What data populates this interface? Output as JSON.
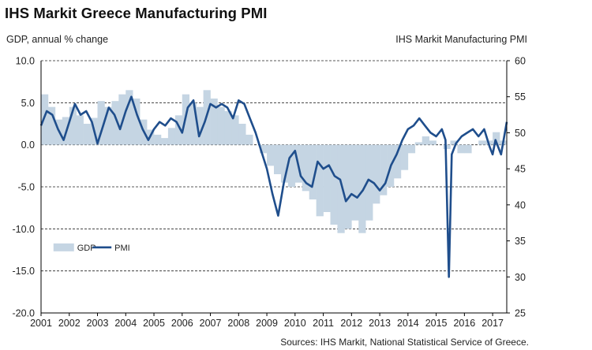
{
  "title": "IHS Markit Greece Manufacturing PMI",
  "left_axis_label": "GDP, annual % change",
  "right_axis_label": "IHS Markit Manufacturing PMI",
  "source": "Sources: IHS Markit, National Statistical Service of Greece.",
  "colors": {
    "gdp": "#c5d5e3",
    "pmi": "#1f4e8c",
    "grid": "#222222",
    "axis": "#000000"
  },
  "chart_data": {
    "type": "area+line",
    "title": "IHS Markit Greece Manufacturing PMI",
    "xlabel": "",
    "ylabel": "GDP, annual % change",
    "y2label": "IHS Markit Manufacturing PMI",
    "x_range": [
      2001.0,
      2017.5
    ],
    "ylim": [
      -20,
      10
    ],
    "y2lim": [
      25,
      60
    ],
    "left_ticks": [
      "10.0",
      "5.0",
      "0.0",
      "-5.0",
      "-10.0",
      "-15.0",
      "-20.0"
    ],
    "left_tick_values": [
      10,
      5,
      0,
      -5,
      -10,
      -15,
      -20
    ],
    "right_ticks": [
      "60",
      "55",
      "50",
      "45",
      "40",
      "35",
      "30",
      "25"
    ],
    "right_tick_values": [
      60,
      55,
      50,
      45,
      40,
      35,
      30,
      25
    ],
    "year_labels": [
      "2001",
      "2002",
      "2003",
      "2004",
      "2005",
      "2006",
      "2007",
      "2008",
      "2009",
      "2010",
      "2011",
      "2012",
      "2013",
      "2014",
      "2015",
      "2016",
      "2017"
    ],
    "legend": [
      "GDP",
      "PMI"
    ],
    "series": [
      {
        "name": "GDP",
        "axis": "left",
        "style": "area",
        "x": [
          2001.0,
          2001.25,
          2001.5,
          2001.75,
          2002.0,
          2002.25,
          2002.5,
          2002.75,
          2003.0,
          2003.25,
          2003.5,
          2003.75,
          2004.0,
          2004.25,
          2004.5,
          2004.75,
          2005.0,
          2005.25,
          2005.5,
          2005.75,
          2006.0,
          2006.25,
          2006.5,
          2006.75,
          2007.0,
          2007.25,
          2007.5,
          2007.75,
          2008.0,
          2008.25,
          2008.5,
          2008.75,
          2009.0,
          2009.25,
          2009.5,
          2009.75,
          2010.0,
          2010.25,
          2010.5,
          2010.75,
          2011.0,
          2011.25,
          2011.5,
          2011.75,
          2012.0,
          2012.25,
          2012.5,
          2012.75,
          2013.0,
          2013.25,
          2013.5,
          2013.75,
          2014.0,
          2014.25,
          2014.5,
          2014.75,
          2015.0,
          2015.25,
          2015.5,
          2015.75,
          2016.0,
          2016.25,
          2016.5,
          2016.75,
          2017.0,
          2017.25
        ],
        "values": [
          6.0,
          4.5,
          3.0,
          3.3,
          4.5,
          3.5,
          2.5,
          3.2,
          5.2,
          4.5,
          5.2,
          6.0,
          6.5,
          5.5,
          3.0,
          1.8,
          1.2,
          0.8,
          2.0,
          3.5,
          6.0,
          5.0,
          4.5,
          6.5,
          5.5,
          4.5,
          4.0,
          3.5,
          2.5,
          1.2,
          0.0,
          -1.0,
          -2.5,
          -3.5,
          -4.5,
          -5.0,
          -4.5,
          -5.5,
          -6.5,
          -8.5,
          -8.0,
          -9.5,
          -10.5,
          -10.0,
          -9.0,
          -10.5,
          -9.0,
          -7.0,
          -6.0,
          -5.0,
          -4.0,
          -3.0,
          -1.0,
          0.3,
          1.0,
          0.5,
          0.0,
          -0.5,
          0.5,
          -1.0,
          -1.0,
          0.0,
          0.5,
          0.5,
          1.5,
          0.5
        ]
      },
      {
        "name": "PMI",
        "axis": "right",
        "style": "line",
        "x": [
          2001.0,
          2001.2,
          2001.4,
          2001.6,
          2001.8,
          2002.0,
          2002.2,
          2002.4,
          2002.6,
          2002.8,
          2003.0,
          2003.2,
          2003.4,
          2003.6,
          2003.8,
          2004.0,
          2004.2,
          2004.4,
          2004.6,
          2004.8,
          2005.0,
          2005.2,
          2005.4,
          2005.6,
          2005.8,
          2006.0,
          2006.2,
          2006.4,
          2006.6,
          2006.8,
          2007.0,
          2007.2,
          2007.4,
          2007.6,
          2007.8,
          2008.0,
          2008.2,
          2008.4,
          2008.6,
          2008.8,
          2009.0,
          2009.2,
          2009.4,
          2009.6,
          2009.8,
          2010.0,
          2010.2,
          2010.4,
          2010.6,
          2010.8,
          2011.0,
          2011.2,
          2011.4,
          2011.6,
          2011.8,
          2012.0,
          2012.2,
          2012.4,
          2012.6,
          2012.8,
          2013.0,
          2013.2,
          2013.4,
          2013.6,
          2013.8,
          2014.0,
          2014.2,
          2014.4,
          2014.6,
          2014.8,
          2015.0,
          2015.2,
          2015.33,
          2015.45,
          2015.55,
          2015.7,
          2015.9,
          2016.1,
          2016.3,
          2016.5,
          2016.7,
          2016.9,
          2017.0,
          2017.1,
          2017.3,
          2017.5
        ],
        "values": [
          51.0,
          53.0,
          52.5,
          50.5,
          49.0,
          51.5,
          54.0,
          52.5,
          53.0,
          51.5,
          48.5,
          51.0,
          53.5,
          52.5,
          50.5,
          53.0,
          55.0,
          52.5,
          50.5,
          49.0,
          50.5,
          51.5,
          51.0,
          52.0,
          51.5,
          50.0,
          53.5,
          54.5,
          49.5,
          51.5,
          54.0,
          53.5,
          54.0,
          53.5,
          52.0,
          54.5,
          54.0,
          52.0,
          50.0,
          47.5,
          45.0,
          41.5,
          38.5,
          43.0,
          46.5,
          47.5,
          44.0,
          43.0,
          42.5,
          46.0,
          45.0,
          45.5,
          44.0,
          43.5,
          40.5,
          41.5,
          41.0,
          42.0,
          43.5,
          43.0,
          42.0,
          43.0,
          45.5,
          47.0,
          49.0,
          50.5,
          51.0,
          52.0,
          51.0,
          50.0,
          49.5,
          50.5,
          49.0,
          30.0,
          47.0,
          48.5,
          49.5,
          50.0,
          50.5,
          49.5,
          50.5,
          48.0,
          47.0,
          49.0,
          47.0,
          51.5
        ]
      }
    ]
  }
}
